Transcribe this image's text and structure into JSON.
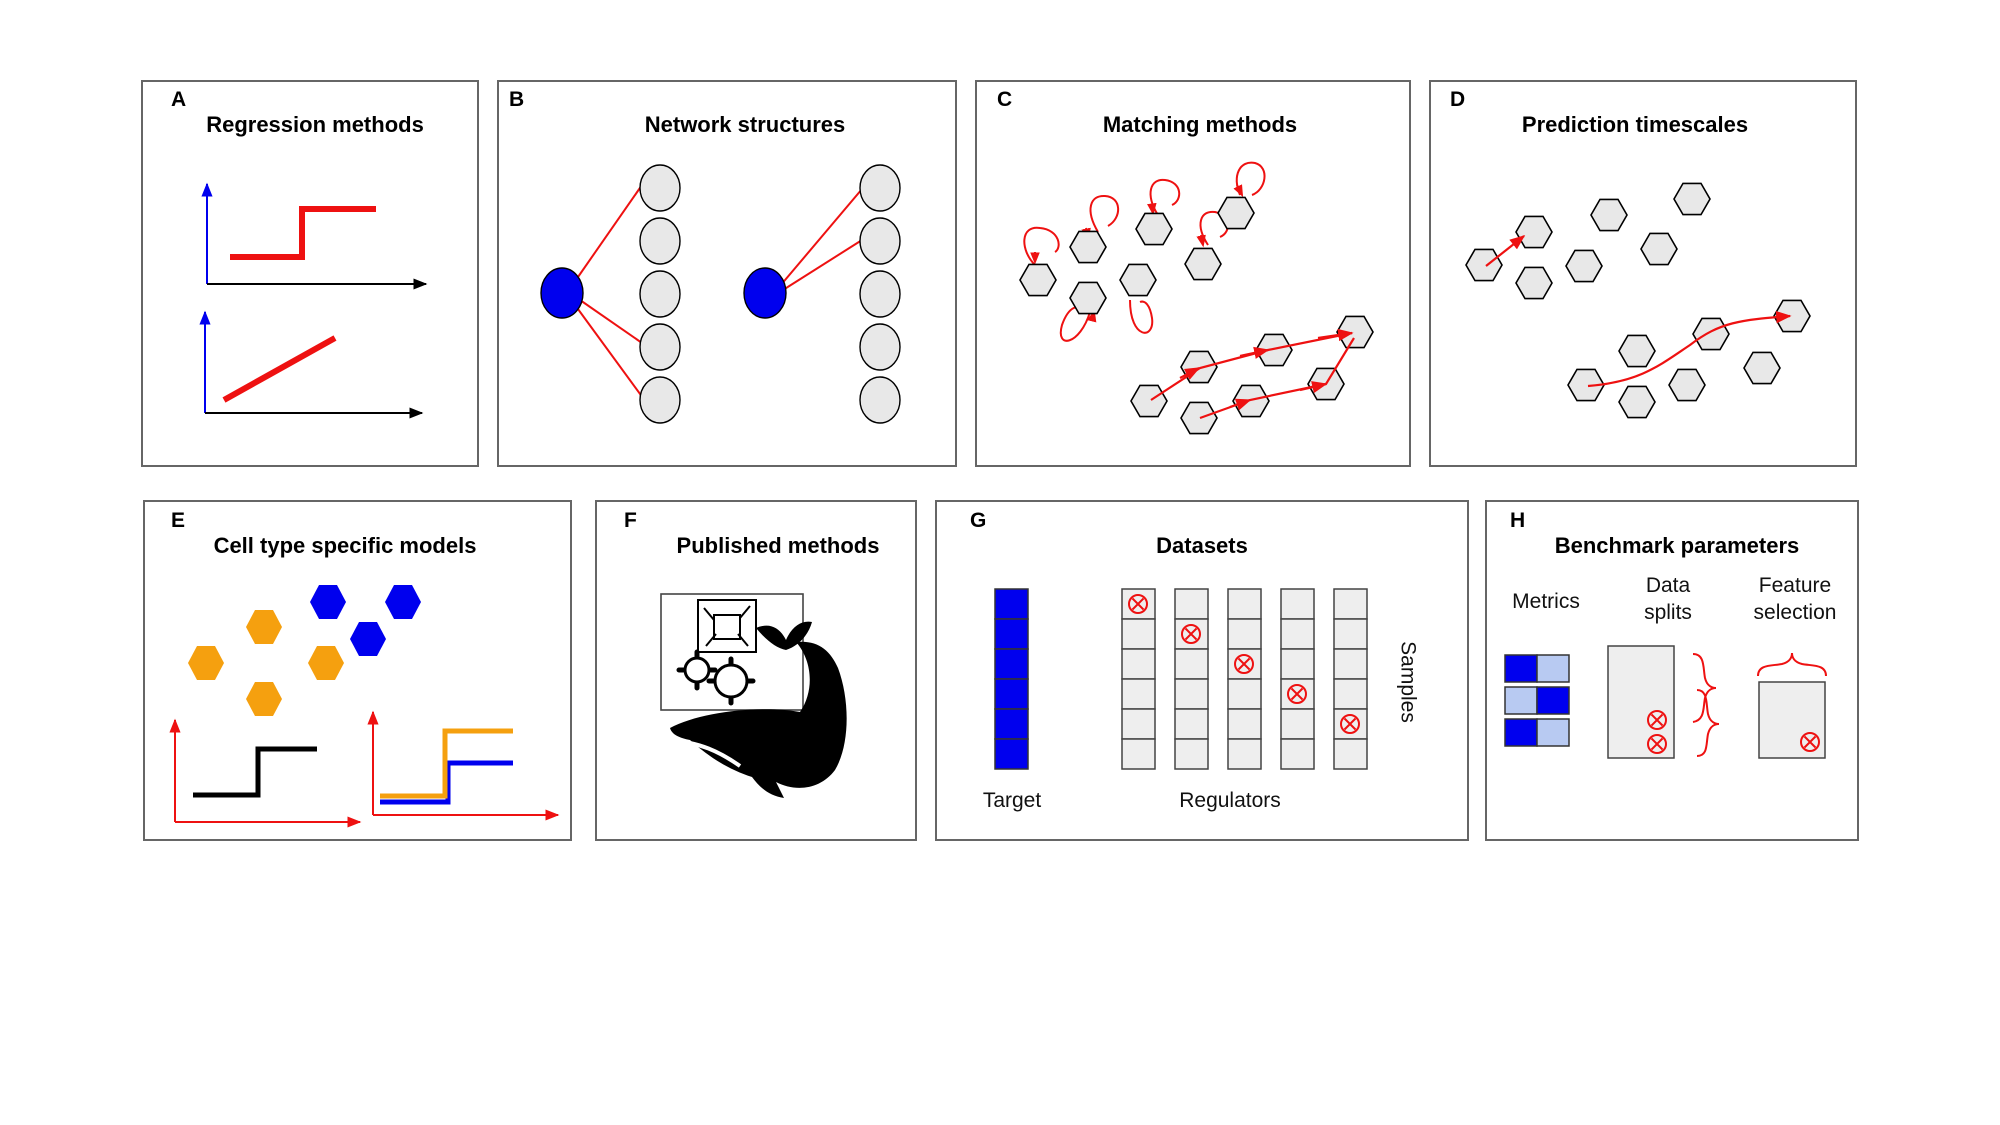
{
  "panels": {
    "a": {
      "letter": "A",
      "title": "Regression methods"
    },
    "b": {
      "letter": "B",
      "title": "Network structures"
    },
    "c": {
      "letter": "C",
      "title": "Matching methods"
    },
    "d": {
      "letter": "D",
      "title": "Prediction timescales"
    },
    "e": {
      "letter": "E",
      "title": "Cell type specific models"
    },
    "f": {
      "letter": "F",
      "title": "Published methods"
    },
    "g": {
      "letter": "G",
      "title": "Datasets",
      "target_label": "Target",
      "regulators_label": "Regulators",
      "samples_label": "Samples"
    },
    "h": {
      "letter": "H",
      "title": "Benchmark parameters",
      "metrics_label": "Metrics",
      "data_splits_label": "Data\nsplits",
      "feature_selection_label": "Feature\nselection"
    }
  },
  "colors": {
    "border": "#666666",
    "red": "#ee1111",
    "blue": "#0000ee",
    "light_blue": "#b8caf2",
    "orange": "#f5a00f",
    "node_gray": "#e8e8e8",
    "black": "#000000"
  },
  "icons": {
    "published_methods": "whale-with-gears-icon",
    "excluded_sample": "circled-x-icon"
  }
}
